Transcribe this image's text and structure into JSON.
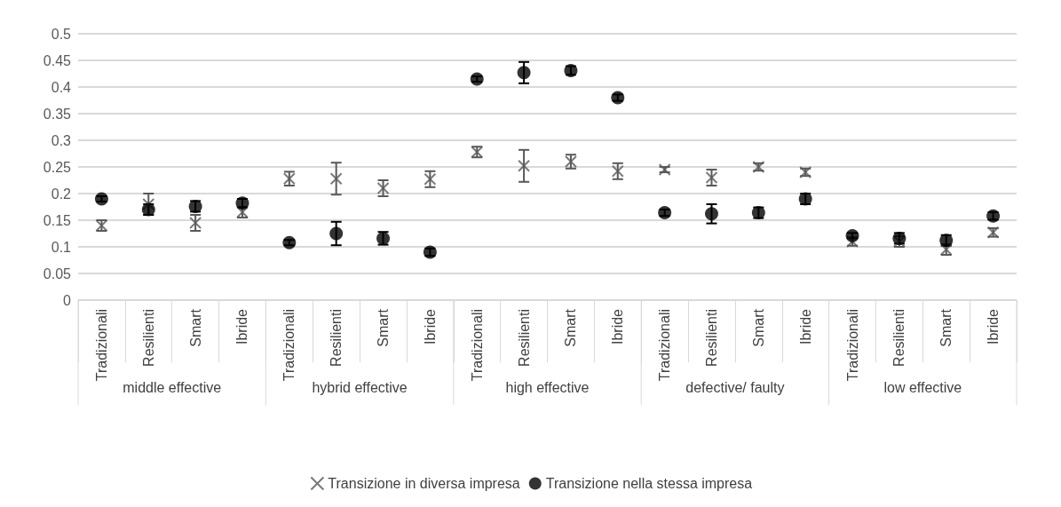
{
  "chart_data": {
    "type": "scatter",
    "categories": [
      "Tradizionali",
      "Resilienti",
      "Smart",
      "Ibride",
      "Tradizionali",
      "Resilienti",
      "Smart",
      "Ibride",
      "Tradizionali",
      "Resilienti",
      "Smart",
      "Ibride",
      "Tradizionali",
      "Resilienti",
      "Smart",
      "Ibride",
      "Tradizionali",
      "Resilienti",
      "Smart",
      "Ibride"
    ],
    "annotations": [
      "middle effective",
      "hybrid effective",
      "high effective",
      "defective/ faulty",
      "low effective"
    ],
    "series": [
      {
        "name": "Transizione in diversa impresa",
        "color": "#595959",
        "marker": "cross",
        "values": [
          0.14,
          0.18,
          0.145,
          0.165,
          0.228,
          0.228,
          0.21,
          0.227,
          0.278,
          0.252,
          0.26,
          0.242,
          0.245,
          0.23,
          0.25,
          0.24,
          0.11,
          0.11,
          0.095,
          0.127
        ],
        "errors": [
          0.01,
          0.02,
          0.015,
          0.01,
          0.013,
          0.03,
          0.015,
          0.015,
          0.01,
          0.03,
          0.013,
          0.015,
          0.005,
          0.015,
          0.007,
          0.007,
          0.008,
          0.01,
          0.01,
          0.008
        ]
      },
      {
        "name": "Transizione nella stessa impresa",
        "color": "#000000",
        "marker": "circle",
        "values": [
          0.19,
          0.17,
          0.176,
          0.182,
          0.108,
          0.125,
          0.116,
          0.09,
          0.415,
          0.427,
          0.431,
          0.38,
          0.164,
          0.162,
          0.164,
          0.19,
          0.121,
          0.116,
          0.112,
          0.158
        ],
        "errors": [
          0.005,
          0.01,
          0.01,
          0.008,
          0.005,
          0.022,
          0.012,
          0.007,
          0.005,
          0.02,
          0.008,
          0.006,
          0.006,
          0.018,
          0.01,
          0.01,
          0.005,
          0.01,
          0.01,
          0.007
        ]
      }
    ],
    "ylim": [
      0,
      0.5
    ],
    "yticks": [
      0,
      0.05,
      0.1,
      0.15,
      0.2,
      0.25,
      0.3,
      0.35,
      0.4,
      0.45,
      0.5
    ],
    "grid": "y",
    "legend": "bottom"
  }
}
